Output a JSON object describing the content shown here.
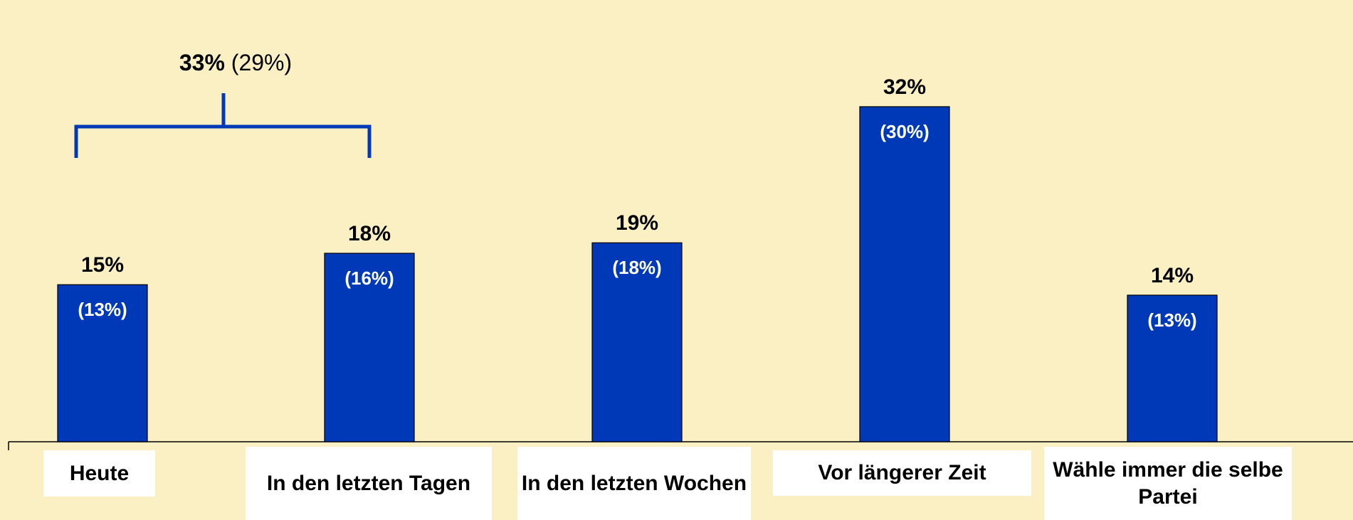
{
  "chart_data": {
    "type": "bar",
    "categories": [
      "Heute",
      "In den letzten Tagen",
      "In den letzten Wochen",
      "Vor längerer Zeit",
      "Wähle immer die selbe Partei"
    ],
    "values": [
      15,
      18,
      19,
      32,
      14
    ],
    "value_labels": [
      "15%",
      "18%",
      "19%",
      "32%",
      "14%"
    ],
    "previous_values": [
      13,
      16,
      18,
      30,
      13
    ],
    "previous_value_labels": [
      "(13%)",
      "(16%)",
      "(18%)",
      "(30%)",
      "(13%)"
    ],
    "color": "#0039b8",
    "annotation": {
      "value": 33,
      "label": "33%",
      "previous_value": 29,
      "previous_label": "(29%)"
    }
  }
}
